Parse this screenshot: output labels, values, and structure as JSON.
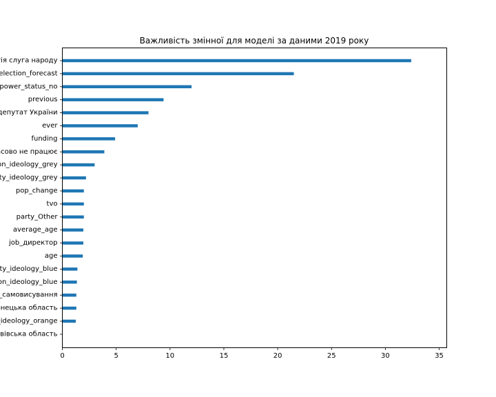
{
  "chart_data": {
    "type": "bar",
    "orientation": "horizontal",
    "title": "Важливість змінної для моделі за даними 2019 року",
    "xlabel": "",
    "ylabel": "",
    "xlim": [
      0,
      35.7
    ],
    "xticks": [
      0,
      5,
      10,
      15,
      20,
      25,
      30,
      35
    ],
    "grid": false,
    "bar_color": "#1f77b4",
    "categories": [
      "партія слуга народу",
      "election_forecast",
      "power_status_no",
      "previous",
      "народний депутат України",
      "ever",
      "funding",
      "тимчасово не працює",
      "region_ideology_grey",
      "party_ideology_grey",
      "pop_change",
      "tvo",
      "party_Other",
      "average_age",
      "job_директор",
      "age",
      "party_ideology_blue",
      "region_ideology_blue",
      "party_самовисування",
      "Донецька область",
      "party_ideology_orange",
      "Львівська область"
    ],
    "values": [
      32.4,
      21.5,
      12.0,
      9.4,
      8.0,
      7.0,
      4.9,
      3.9,
      3.0,
      2.2,
      2.0,
      2.0,
      2.0,
      1.95,
      1.95,
      1.9,
      1.4,
      1.35,
      1.3,
      1.3,
      1.25,
      0.0
    ]
  }
}
